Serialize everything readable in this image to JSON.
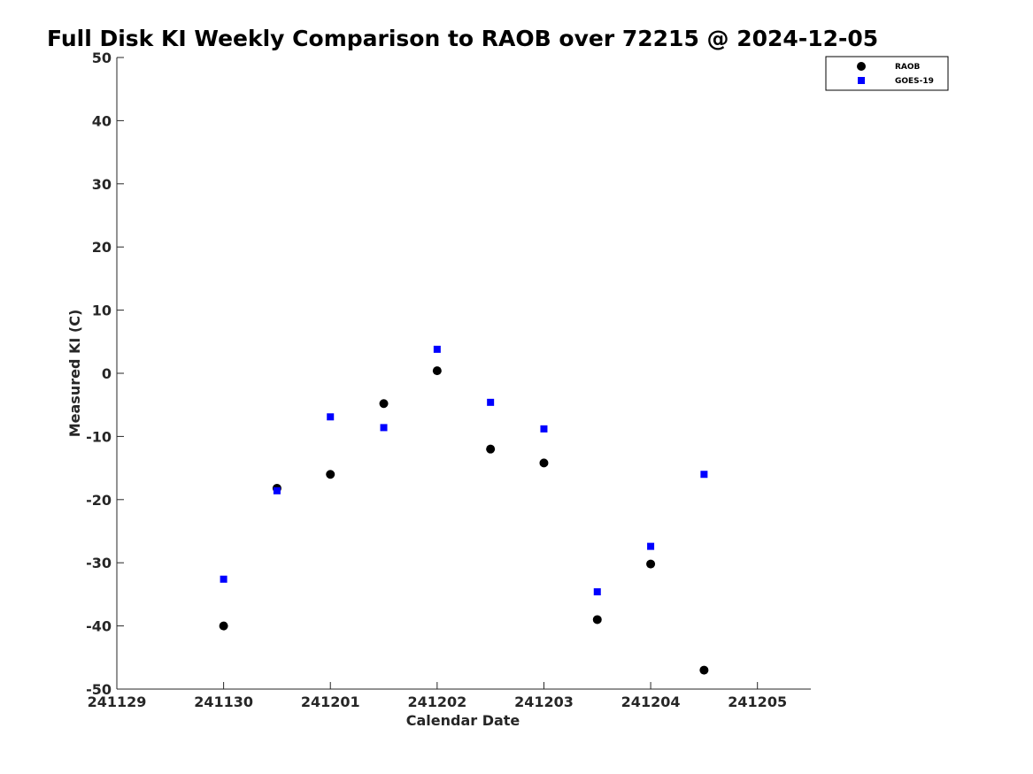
{
  "chart_data": {
    "type": "scatter",
    "title": "Full Disk KI Weekly Comparison to RAOB over 72215 @ 2024-12-05",
    "xlabel": "Calendar Date",
    "ylabel": "Measured KI (C)",
    "xlim": [
      0,
      6.5
    ],
    "ylim": [
      -50,
      50
    ],
    "x_ticks": [
      0,
      1,
      2,
      3,
      4,
      5,
      6
    ],
    "x_tick_labels": [
      "241129",
      "241130",
      "241201",
      "241202",
      "241203",
      "241204",
      "241205"
    ],
    "y_ticks": [
      50,
      40,
      30,
      20,
      10,
      0,
      -10,
      -20,
      -30,
      -40,
      -50
    ],
    "y_tick_labels": [
      "50",
      "40",
      "30",
      "20",
      "10",
      "0",
      "-10",
      "-20",
      "-30",
      "-40",
      "-50"
    ],
    "grid": false,
    "legend_position": "top-right",
    "series": [
      {
        "name": "RAOB",
        "marker": "circle",
        "color": "#000000",
        "x": [
          1,
          1.5,
          2,
          2.5,
          3,
          3.5,
          4,
          4.5,
          5,
          5.5
        ],
        "values": [
          -40,
          -18.2,
          -16,
          -4.8,
          0.4,
          -12,
          -14.2,
          -39,
          -30.2,
          -47
        ]
      },
      {
        "name": "GOES-19",
        "marker": "square",
        "color": "#0000ff",
        "x": [
          1,
          1.5,
          2,
          2.5,
          3,
          3.5,
          4,
          4.5,
          5,
          5.5
        ],
        "values": [
          -32.6,
          -18.6,
          -6.9,
          -8.6,
          3.8,
          -4.6,
          -8.8,
          -34.6,
          -27.4,
          -16
        ]
      }
    ]
  }
}
